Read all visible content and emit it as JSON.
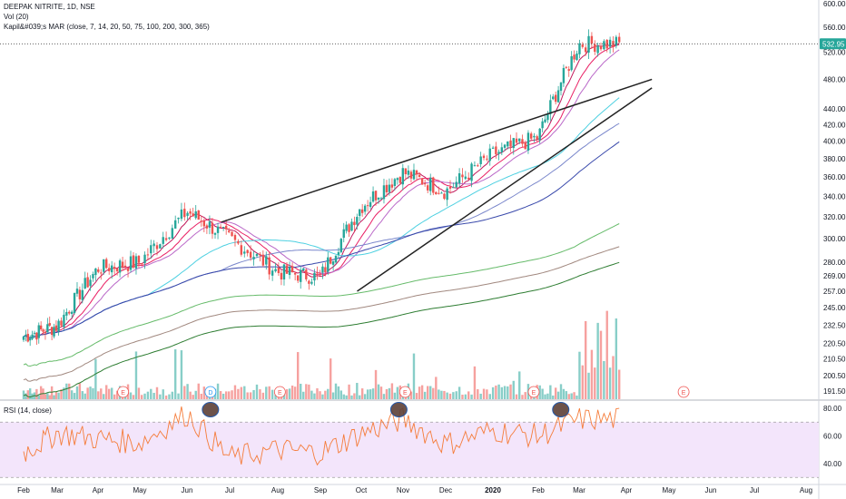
{
  "legend": {
    "symbol_line": "DEEPAK NITRITE, 1D, NSE",
    "volume_line": "Vol (20)",
    "ma_line": "Kapil&#039;s MAR (close, 7, 14, 20, 50, 75, 100, 200, 300, 365)",
    "rsi_line": "RSI (14, close)"
  },
  "last_price_label": "532.95",
  "earnings_markers": [
    "E",
    "D",
    "E",
    "E",
    "E",
    "E"
  ],
  "colors": {
    "up": "#26a69a",
    "down": "#ef5350",
    "trendline": "#222222",
    "rsi_line": "#f57c3a",
    "rsi_band": "#f3e5fb",
    "last_price_badge": "#26a69a"
  },
  "chart_data": {
    "type": "line",
    "title": "DEEPAK NITRITE, 1D, NSE",
    "price_axis": {
      "scale": "log",
      "ticks": [
        600.0,
        560.0,
        520.0,
        480.0,
        440.0,
        420.0,
        400.0,
        380.0,
        360.0,
        340.0,
        320.0,
        300.0,
        280.0,
        269.0,
        257.0,
        245.0,
        232.5,
        220.5,
        210.5,
        200.5,
        191.5
      ],
      "tick_labels": [
        "600.00",
        "560.00",
        "520.00",
        "480.00",
        "440.00",
        "420.00",
        "400.00",
        "380.00",
        "360.00",
        "340.00",
        "320.00",
        "300.00",
        "280.00",
        "269.00",
        "257.00",
        "245.00",
        "232.50",
        "220.50",
        "210.50",
        "200.50",
        "191.50"
      ]
    },
    "time_axis": {
      "tick_labels": [
        "Feb",
        "Mar",
        "Apr",
        "May",
        "Jun",
        "Jul",
        "Aug",
        "Sep",
        "Oct",
        "Nov",
        "Dec",
        "2020",
        "Feb",
        "Mar",
        "Apr",
        "May",
        "Jun",
        "Jul",
        "Aug"
      ]
    },
    "rsi_axis": {
      "ticks": [
        80.0,
        60.0,
        40.0
      ],
      "tick_labels": [
        "80.00",
        "60.00",
        "40.00"
      ]
    },
    "series": [
      {
        "name": "close",
        "x": [
          "Feb",
          "Mar",
          "Apr",
          "May",
          "Jun",
          "Jul",
          "Aug",
          "Sep",
          "Oct",
          "Nov",
          "Dec",
          "2020",
          "Feb",
          "Mar"
        ],
        "values": [
          225,
          232,
          275,
          280,
          325,
          300,
          272,
          268,
          330,
          365,
          345,
          385,
          405,
          533
        ]
      }
    ],
    "rsi": {
      "x": [
        "Feb",
        "Mar",
        "Apr",
        "May",
        "Jun",
        "Jul",
        "Aug",
        "Sep",
        "Oct",
        "Nov",
        "Dec",
        "2020",
        "Feb",
        "Mar"
      ],
      "values": [
        48,
        62,
        58,
        55,
        76,
        44,
        50,
        48,
        62,
        72,
        54,
        64,
        60,
        72
      ]
    }
  }
}
